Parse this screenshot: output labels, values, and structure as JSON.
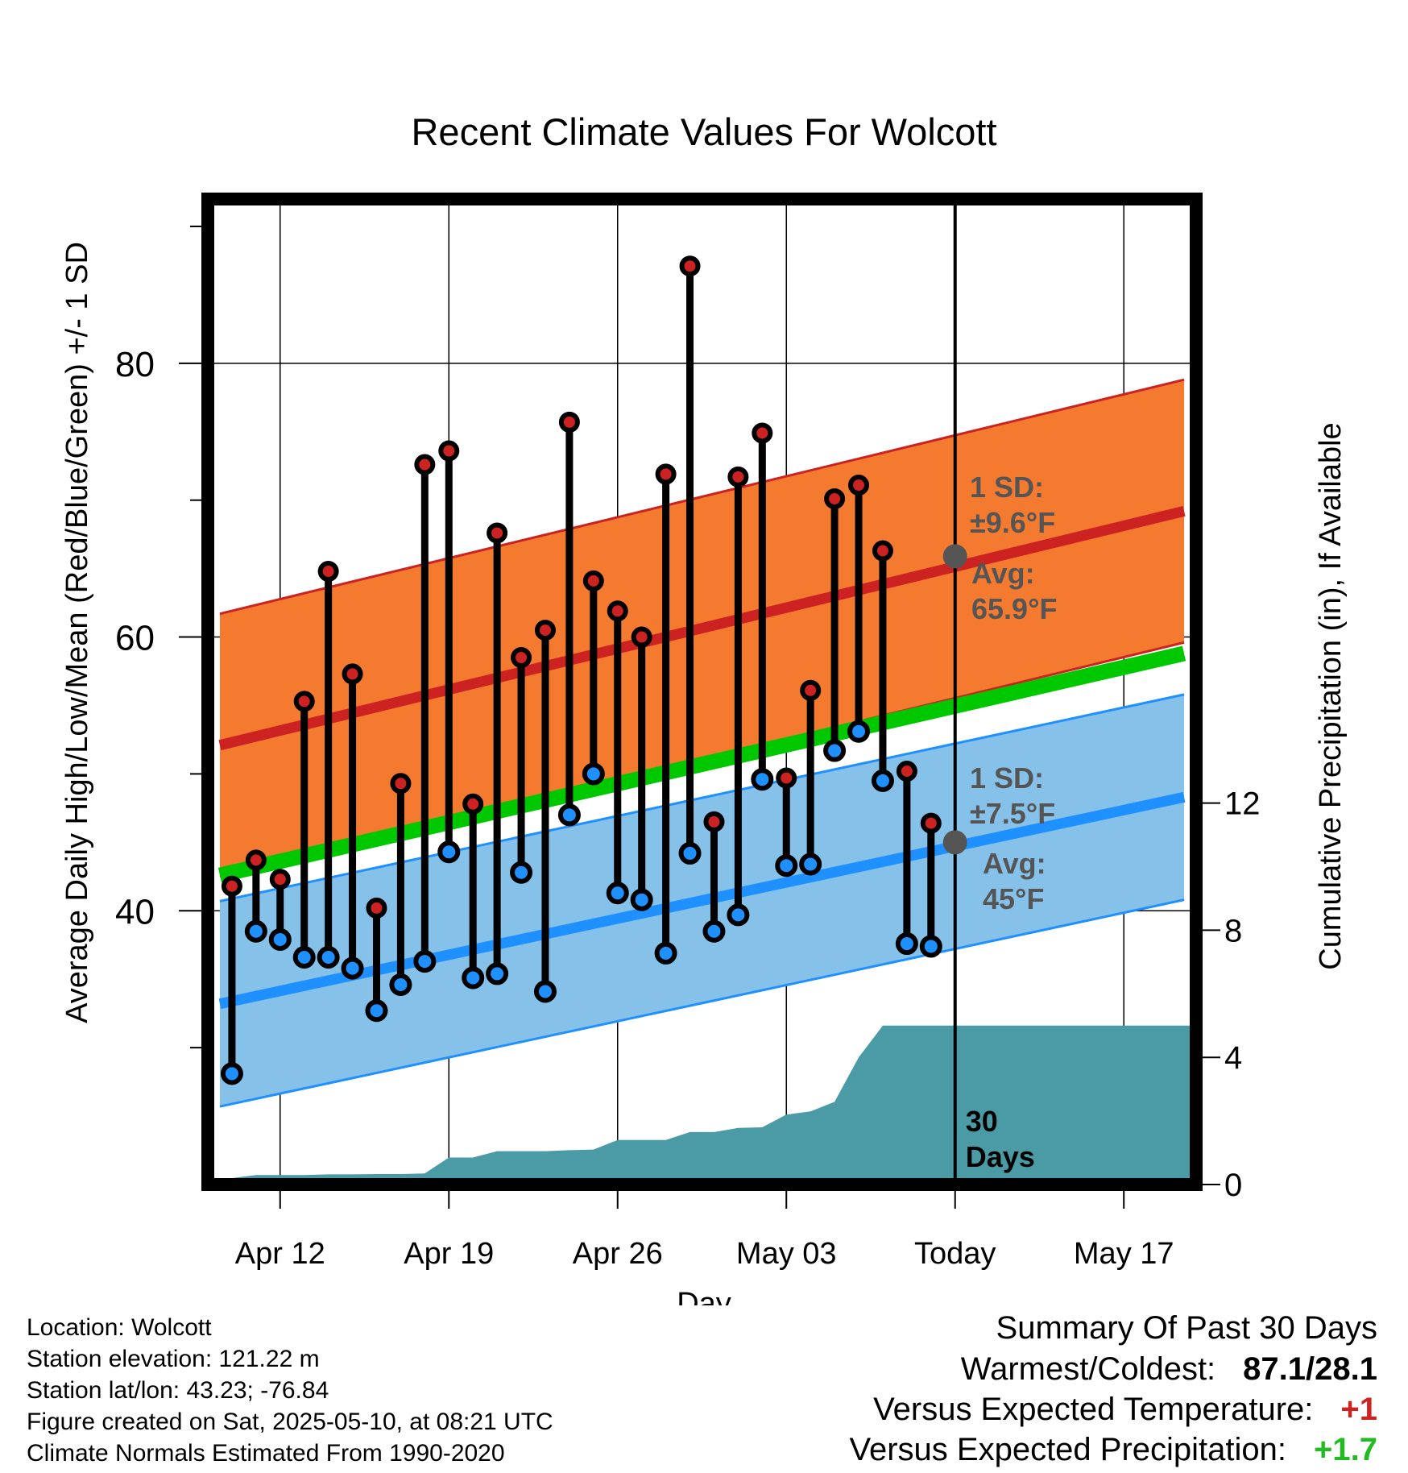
{
  "chart_data": {
    "type": "line",
    "title": "Recent Climate Values For Wolcott",
    "xlabel": "Day",
    "ylabel": "Average Daily High/Low/Mean (Red/Blue/Green) +/- 1 SD",
    "ylabel_right": "Cumulative Precipitation (in), If Available",
    "ylim": [
      20,
      92
    ],
    "ylim_right": [
      0,
      31
    ],
    "x_range_days": [
      0,
      41
    ],
    "x_ticks": [
      {
        "label": "Apr 12",
        "day": 3
      },
      {
        "label": "Apr 19",
        "day": 10
      },
      {
        "label": "Apr 26",
        "day": 17
      },
      {
        "label": "May 03",
        "day": 24
      },
      {
        "label": "Today",
        "day": 31
      },
      {
        "label": "May 17",
        "day": 38
      }
    ],
    "y_ticks_left": [
      40,
      60,
      80
    ],
    "y_minor_left": [
      30,
      50,
      70,
      90
    ],
    "y_ticks_right": [
      0,
      4,
      8,
      12
    ],
    "today_label": "30\nDays",
    "highs": [
      41.8,
      43.7,
      42.3,
      55.3,
      64.8,
      57.3,
      40.2,
      49.3,
      72.6,
      73.6,
      47.8,
      67.6,
      58.5,
      60.5,
      75.7,
      64.1,
      61.9,
      60.0,
      71.9,
      87.1,
      46.5,
      71.7,
      74.9,
      49.7,
      56.1,
      70.1,
      71.1,
      66.3,
      50.2,
      46.4
    ],
    "lows": [
      28.1,
      38.5,
      37.9,
      36.6,
      36.6,
      35.8,
      32.7,
      34.6,
      36.3,
      44.3,
      35.1,
      35.4,
      42.8,
      34.1,
      47.0,
      50.0,
      41.3,
      40.8,
      36.9,
      44.2,
      38.5,
      39.7,
      49.6,
      43.3,
      43.4,
      51.7,
      53.1,
      49.5,
      37.6,
      37.4
    ],
    "normal_high": {
      "start": 52.1,
      "end": 69.2,
      "sd": 9.6
    },
    "normal_low": {
      "start": 33.2,
      "end": 48.3,
      "sd": 7.5
    },
    "normal_mean": {
      "start": 42.6,
      "end": 58.8
    },
    "precip_x": [
      0,
      0.5,
      1.0,
      1.5,
      2.0,
      3.0,
      4.0,
      5.0,
      6.0,
      7.0,
      8.0,
      9.0,
      10.0,
      11.0,
      12.0,
      13.0,
      14.0,
      15.0,
      16.0,
      17.0,
      18.0,
      19.0,
      20.0,
      21.0,
      22.0,
      23.0,
      24.0,
      25.0,
      26.0,
      27.0,
      28.0,
      28.5,
      29.0,
      30.0,
      31.0,
      41.0
    ],
    "precip_y": [
      0,
      0,
      0.2,
      0.25,
      0.3,
      0.3,
      0.3,
      0.32,
      0.32,
      0.33,
      0.33,
      0.35,
      0.85,
      0.85,
      1.05,
      1.05,
      1.05,
      1.08,
      1.1,
      1.4,
      1.4,
      1.4,
      1.65,
      1.65,
      1.78,
      1.8,
      2.2,
      2.3,
      2.6,
      4.0,
      5.0,
      5.0,
      5.0,
      5.0,
      5.0,
      5.0
    ],
    "annotations": {
      "high_sd_label": "1 SD:",
      "high_sd_value": "±9.6°F",
      "high_avg_label": "Avg:",
      "high_avg_value": "65.9°F",
      "low_sd_label": "1 SD:",
      "low_sd_value": "±7.5°F",
      "low_avg_label": "Avg:",
      "low_avg_value": "45°F",
      "today_high_avg": 65.9,
      "today_low_avg": 45.0
    },
    "colors": {
      "high_band": "#f47a30",
      "high_line": "#cc2222",
      "low_band": "#85c1e8",
      "low_line": "#1e90ff",
      "mean_line": "#00c800",
      "precip": "#4a9ba6",
      "dot_high": "#cc2222",
      "dot_low": "#1e90ff",
      "today_dot": "#555555",
      "annotation_text": "#555555"
    }
  },
  "footer": {
    "location": "Location: Wolcott",
    "elevation": "Station elevation: 121.22 m",
    "latlon": "Station lat/lon: 43.23; -76.84",
    "created": "Figure created on Sat, 2025-05-10, at 08:21 UTC",
    "normals": "Climate Normals Estimated From 1990-2020"
  },
  "summary": {
    "title": "Summary Of Past 30 Days",
    "warmest_label": "Warmest/Coldest:",
    "warmest_value": "87.1/28.1",
    "temp_label": "Versus Expected Temperature:",
    "temp_value": "+1",
    "precip_label": "Versus Expected Precipitation:",
    "precip_value": "+1.7"
  }
}
